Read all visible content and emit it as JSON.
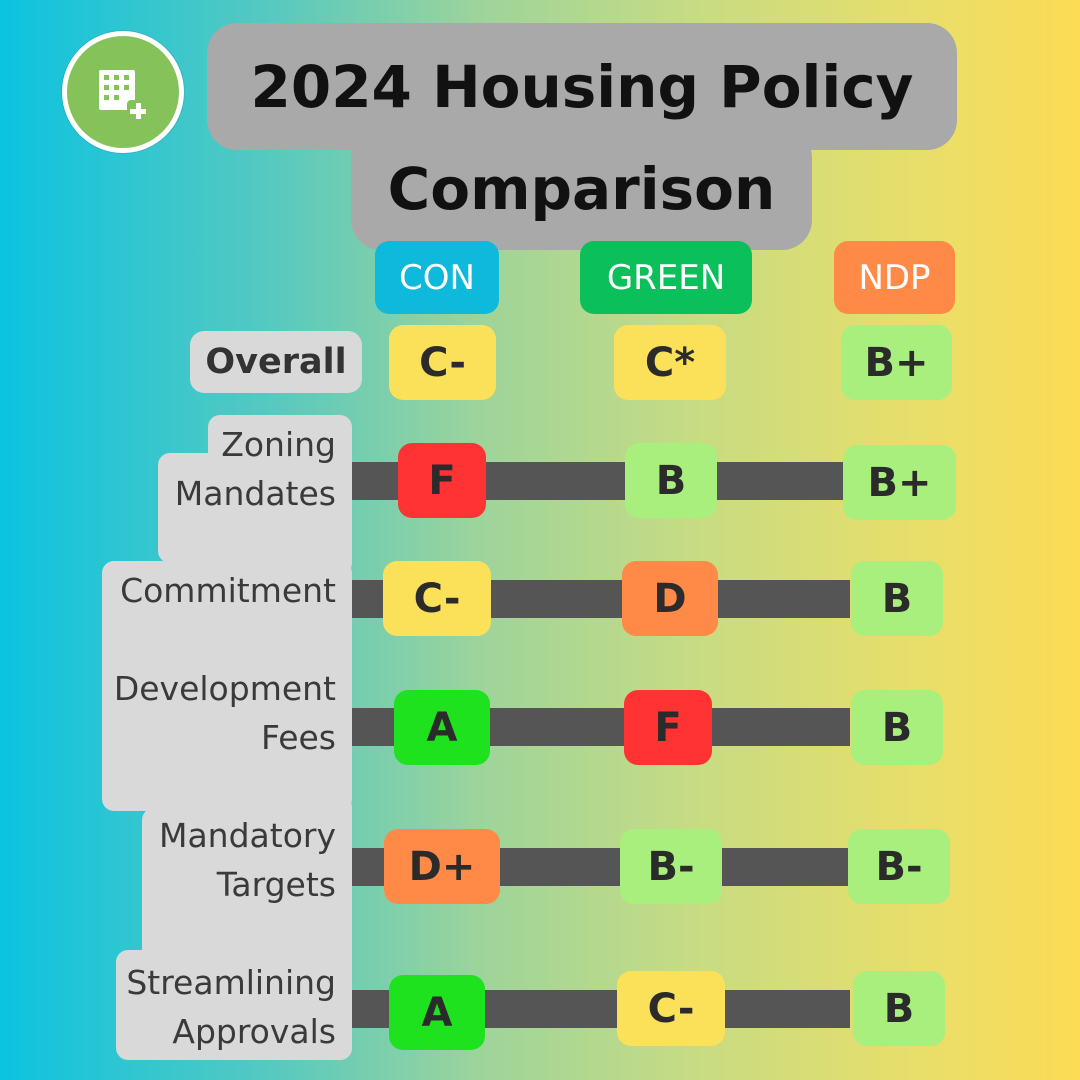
{
  "title": {
    "line1": "2024 Housing Policy",
    "line2": "Comparison"
  },
  "logo": {
    "icon": "building-plus-icon",
    "color": "#86c25a"
  },
  "parties": [
    {
      "label": "CON",
      "color": "#0fb9dc"
    },
    {
      "label": "GREEN",
      "color": "#0bbf5a"
    },
    {
      "label": "NDP",
      "color": "#ff8a47"
    }
  ],
  "overall": {
    "label": "Overall",
    "grades": [
      "C-",
      "C*",
      "B+"
    ]
  },
  "rows": [
    {
      "line1": "Zoning",
      "line2": "Mandates",
      "grades": [
        "F",
        "B",
        "B+"
      ]
    },
    {
      "line1": "Commitment",
      "line2": "",
      "grades": [
        "C-",
        "D",
        "B"
      ]
    },
    {
      "line1": "Development",
      "line2": "Fees",
      "grades": [
        "A",
        "F",
        "B"
      ]
    },
    {
      "line1": "Mandatory",
      "line2": "Targets",
      "grades": [
        "D+",
        "B-",
        "B-"
      ]
    },
    {
      "line1": "Streamlining",
      "line2": "Approvals",
      "grades": [
        "A",
        "C-",
        "B"
      ]
    }
  ],
  "grade_colors": {
    "A": "#1ee21e",
    "B+": "#a8ef7e",
    "B": "#a8ef7e",
    "B-": "#a8ef7e",
    "C*": "#fbe05a",
    "C-": "#fbe05a",
    "D+": "#ff8a47",
    "D": "#ff8a47",
    "F": "#ff3333"
  }
}
